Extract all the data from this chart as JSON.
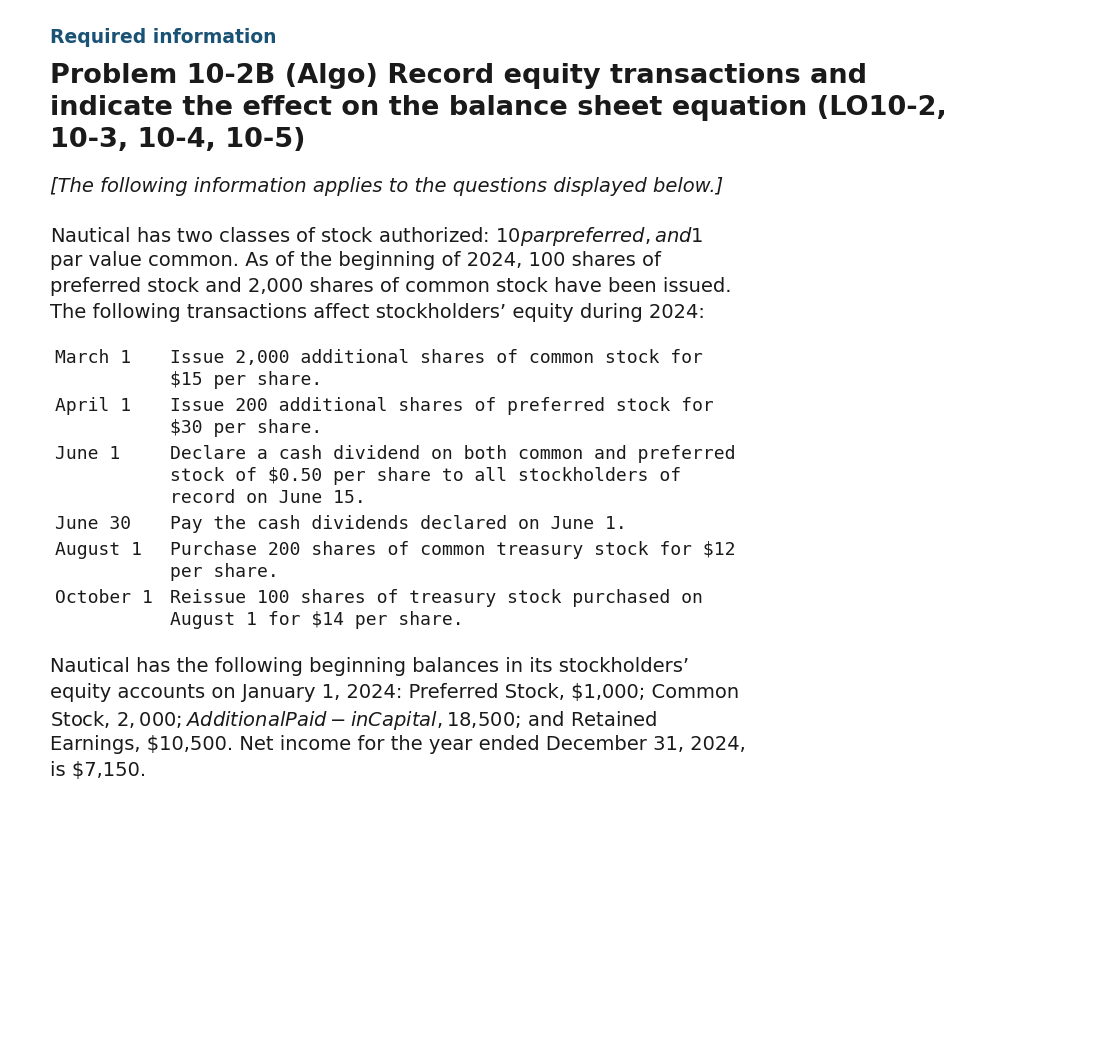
{
  "bg_color": "#ffffff",
  "required_info_color": "#1a5276",
  "required_info_text": "Required information",
  "required_info_fontsize": 13.5,
  "title_lines": [
    "Problem 10-2B (Algo) Record equity transactions and",
    "indicate the effect on the balance sheet equation (LO10-2,",
    "10-3, 10-4, 10-5)"
  ],
  "title_fontsize": 19.5,
  "title_color": "#1a1a1a",
  "subtitle_text": "[The following information applies to the questions displayed below.]",
  "subtitle_fontsize": 14,
  "subtitle_color": "#1a1a1a",
  "intro_lines": [
    "Nautical has two classes of stock authorized: $10 par preferred, and $1",
    "par value common. As of the beginning of 2024, 100 shares of",
    "preferred stock and 2,000 shares of common stock have been issued.",
    "The following transactions affect stockholders’ equity during 2024:"
  ],
  "intro_fontsize": 14,
  "intro_color": "#1a1a1a",
  "transactions": [
    {
      "date": "March 1",
      "desc_lines": [
        "Issue 2,000 additional shares of common stock for",
        "$15 per share."
      ]
    },
    {
      "date": "April 1",
      "desc_lines": [
        "Issue 200 additional shares of preferred stock for",
        "$30 per share."
      ]
    },
    {
      "date": "June 1",
      "desc_lines": [
        "Declare a cash dividend on both common and preferred",
        "stock of $0.50 per share to all stockholders of",
        "record on June 15."
      ]
    },
    {
      "date": "June 30",
      "desc_lines": [
        "Pay the cash dividends declared on June 1."
      ]
    },
    {
      "date": "August 1",
      "desc_lines": [
        "Purchase 200 shares of common treasury stock for $12",
        "per share."
      ]
    },
    {
      "date": "October 1",
      "desc_lines": [
        "Reissue 100 shares of treasury stock purchased on",
        "August 1 for $14 per share."
      ]
    }
  ],
  "transaction_fontsize": 13,
  "transaction_color": "#1a1a1a",
  "closing_lines": [
    "Nautical has the following beginning balances in its stockholders’",
    "equity accounts on January 1, 2024: Preferred Stock, $1,000; Common",
    "Stock, $2,000; Additional Paid-in Capital, $18,500; and Retained",
    "Earnings, $10,500. Net income for the year ended December 31, 2024,",
    "is $7,150."
  ],
  "closing_fontsize": 14,
  "closing_color": "#1a1a1a"
}
